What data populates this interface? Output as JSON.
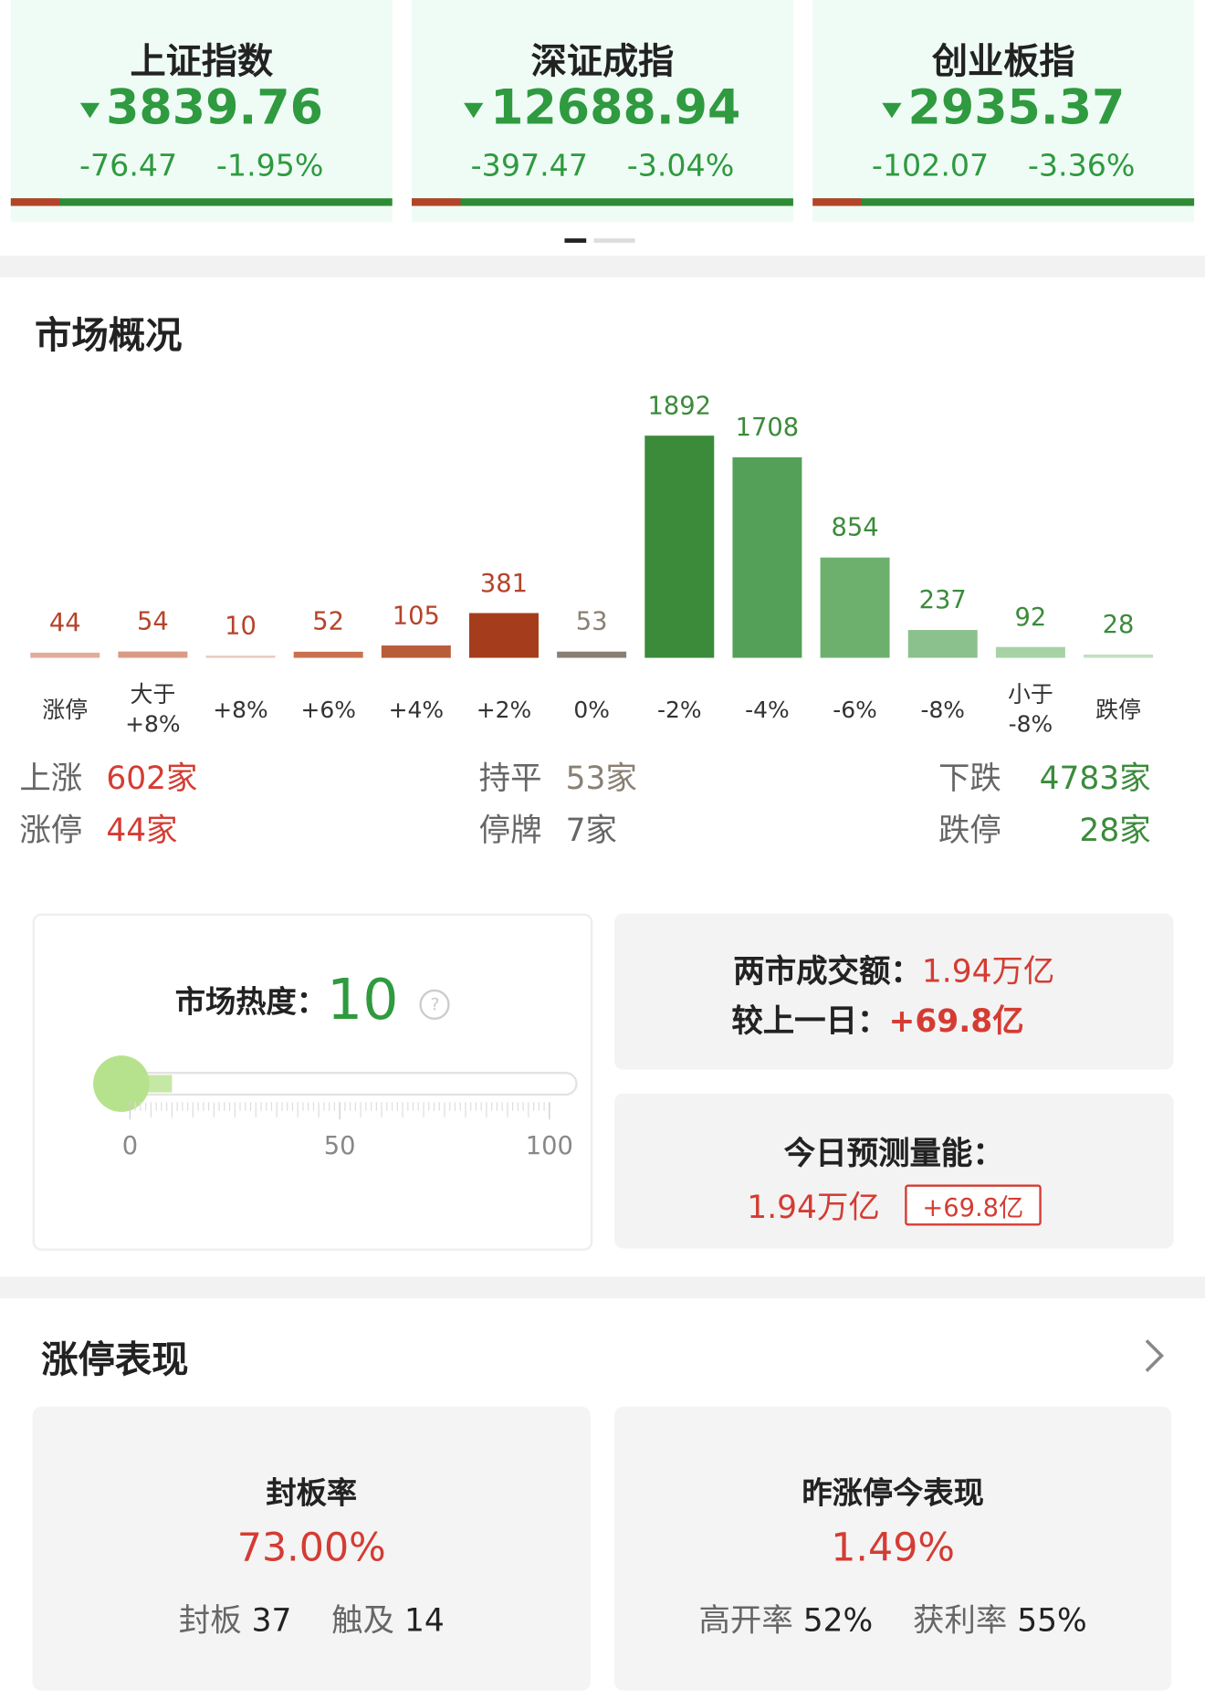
{
  "indices": [
    {
      "name": "上证指数",
      "value": "3839.76",
      "change": "-76.47",
      "pct": "-1.95%"
    },
    {
      "name": "深证成指",
      "value": "12688.94",
      "change": "-397.47",
      "pct": "-3.04%"
    },
    {
      "name": "创业板指",
      "value": "2935.37",
      "change": "-102.07",
      "pct": "-3.36%"
    }
  ],
  "overview_title": "市场概况",
  "chart_data": {
    "type": "bar",
    "categories": [
      "涨停",
      "大于\n+8%",
      "+8%",
      "+6%",
      "+4%",
      "+2%",
      "0%",
      "-2%",
      "-4%",
      "-6%",
      "-8%",
      "小于\n-8%",
      "跌停"
    ],
    "values": [
      44,
      54,
      10,
      52,
      105,
      381,
      53,
      1892,
      1708,
      854,
      237,
      92,
      28
    ],
    "colors": [
      "#e3ab9b",
      "#d99b86",
      "#e8c6bb",
      "#c9714f",
      "#b85c3a",
      "#a53d1d",
      "#8a7f72",
      "#3b8b3b",
      "#55a058",
      "#6db06e",
      "#8bc18c",
      "#a6d2a6",
      "#c2dfc2"
    ]
  },
  "stats": [
    [
      {
        "label": "上涨",
        "value": "602家"
      },
      {
        "label": "持平",
        "value": "53家"
      },
      {
        "label": "下跌",
        "value": "4783家"
      }
    ],
    [
      {
        "label": "涨停",
        "value": "44家"
      },
      {
        "label": "停牌",
        "value": "7家"
      },
      {
        "label": "跌停",
        "value": "28家"
      }
    ]
  ],
  "heat": {
    "label": "市场热度：",
    "value": 10,
    "ticks": [
      0,
      50,
      100
    ]
  },
  "turnover": {
    "label": "两市成交额：",
    "value": "1.94万亿",
    "diff_label": "较上一日：",
    "diff": "+69.8亿"
  },
  "forecast": {
    "label": "今日预测量能：",
    "value": "1.94万亿",
    "diff": "+69.8亿"
  },
  "limit_up": {
    "title": "涨停表现",
    "seal": {
      "title": "封板率",
      "value": "73.00%",
      "a_label": "封板",
      "a": "37",
      "b_label": "触及",
      "b": "14"
    },
    "yesterday": {
      "title": "昨涨停今表现",
      "value": "1.49%",
      "a_label": "高开率",
      "a": "52%",
      "b_label": "获利率",
      "b": "55%"
    }
  }
}
